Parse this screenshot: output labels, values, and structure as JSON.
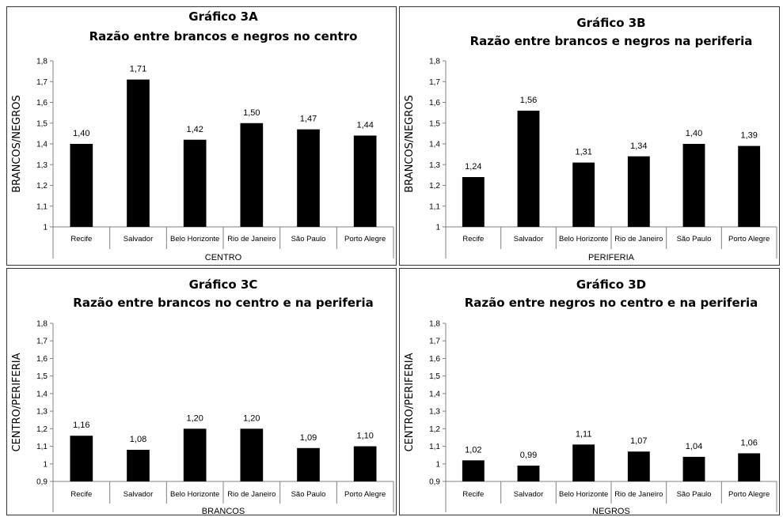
{
  "chart_data": [
    {
      "type": "bar",
      "title": "Gráfico 3A",
      "subtitle": "Razão entre brancos e negros no centro",
      "categories": [
        "Recife",
        "Salvador",
        "Belo Horizonte",
        "Rio de Janeiro",
        "São Paulo",
        "Porto Alegre"
      ],
      "values": [
        1.4,
        1.71,
        1.42,
        1.5,
        1.47,
        1.44
      ],
      "value_labels": [
        "1,40",
        "1,71",
        "1,42",
        "1,50",
        "1,47",
        "1,44"
      ],
      "ylabel": "BRANCOS/NEGROS",
      "xlabel": "CENTRO",
      "ylim": [
        1,
        1.8
      ],
      "yticks": [
        "1",
        "1,1",
        "1,2",
        "1,3",
        "1,4",
        "1,5",
        "1,6",
        "1,7",
        "1,8"
      ],
      "bar_color": "#000000",
      "grid": false
    },
    {
      "type": "bar",
      "title": "Gráfico 3B",
      "subtitle": "Razão entre brancos e negros na periferia",
      "categories": [
        "Recife",
        "Salvador",
        "Belo Horizonte",
        "Rio de Janeiro",
        "São Paulo",
        "Porto Alegre"
      ],
      "values": [
        1.24,
        1.56,
        1.31,
        1.34,
        1.4,
        1.39
      ],
      "value_labels": [
        "1,24",
        "1,56",
        "1,31",
        "1,34",
        "1,40",
        "1,39"
      ],
      "ylabel": "BRANCOS/NEGROS",
      "xlabel": "PERIFERIA",
      "ylim": [
        1,
        1.8
      ],
      "yticks": [
        "1",
        "1,1",
        "1,2",
        "1,3",
        "1,4",
        "1,5",
        "1,6",
        "1,7",
        "1,8"
      ],
      "bar_color": "#000000",
      "grid": false
    },
    {
      "type": "bar",
      "title": "Gráfico 3C",
      "subtitle": "Razão entre brancos no centro e na periferia",
      "categories": [
        "Recife",
        "Salvador",
        "Belo Horizonte",
        "Rio de Janeiro",
        "São Paulo",
        "Porto Alegre"
      ],
      "values": [
        1.16,
        1.08,
        1.2,
        1.2,
        1.09,
        1.1
      ],
      "value_labels": [
        "1,16",
        "1,08",
        "1,20",
        "1,20",
        "1,09",
        "1,10"
      ],
      "ylabel": "CENTRO/PERIFERIA",
      "xlabel": "BRANCOS",
      "ylim": [
        0.9,
        1.8
      ],
      "yticks": [
        "0,9",
        "1",
        "1,1",
        "1,2",
        "1,3",
        "1,4",
        "1,5",
        "1,6",
        "1,7",
        "1,8"
      ],
      "bar_color": "#000000",
      "grid": false
    },
    {
      "type": "bar",
      "title": "Gráfico 3D",
      "subtitle": "Razão entre negros no centro e na periferia",
      "categories": [
        "Recife",
        "Salvador",
        "Belo Horizonte",
        "Rio de Janeiro",
        "São Paulo",
        "Porto Alegre"
      ],
      "values": [
        1.02,
        0.99,
        1.11,
        1.07,
        1.04,
        1.06
      ],
      "value_labels": [
        "1,02",
        "0,99",
        "1,11",
        "1,07",
        "1,04",
        "1,06"
      ],
      "ylabel": "CENTRO/PERIFERIA",
      "xlabel": "NEGROS",
      "ylim": [
        0.9,
        1.8
      ],
      "yticks": [
        "0,9",
        "1",
        "1,1",
        "1,2",
        "1,3",
        "1,4",
        "1,5",
        "1,6",
        "1,7",
        "1,8"
      ],
      "bar_color": "#000000",
      "grid": false
    }
  ]
}
